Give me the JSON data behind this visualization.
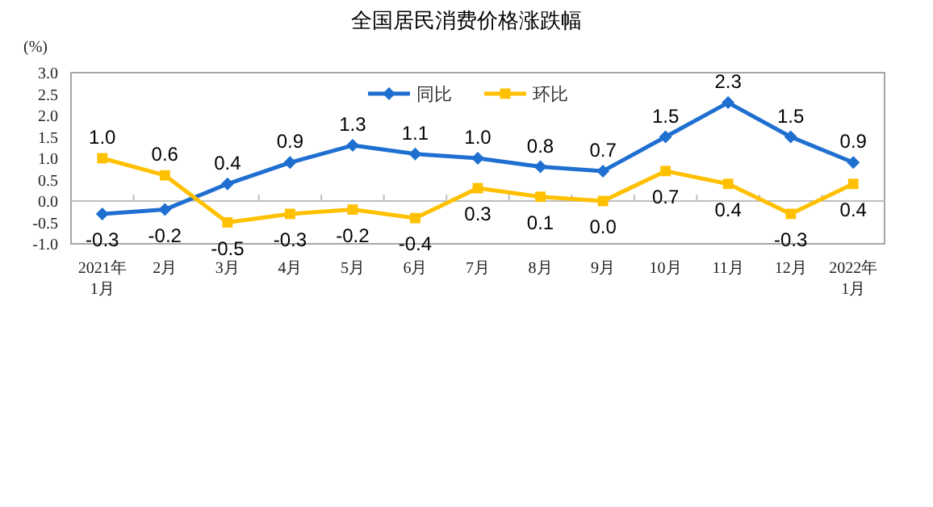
{
  "chart_data": {
    "type": "line",
    "title": "全国居民消费价格涨跌幅",
    "ylabel": "(%)",
    "categories": [
      "2021年\n1月",
      "2月",
      "3月",
      "4月",
      "5月",
      "6月",
      "7月",
      "8月",
      "9月",
      "10月",
      "11月",
      "12月",
      "2022年\n1月"
    ],
    "series": [
      {
        "name": "同比",
        "color": "#1f6fd1",
        "marker": "diamond",
        "values": [
          -0.3,
          -0.2,
          0.4,
          0.9,
          1.3,
          1.1,
          1.0,
          0.8,
          0.7,
          1.5,
          2.3,
          1.5,
          0.9
        ],
        "value_labels": [
          "-0.3",
          "-0.2",
          "0.4",
          "0.9",
          "1.3",
          "1.1",
          "1.0",
          "0.8",
          "0.7",
          "1.5",
          "2.3",
          "1.5",
          "0.9"
        ]
      },
      {
        "name": "环比",
        "color": "#ffc000",
        "marker": "square",
        "values": [
          1.0,
          0.6,
          -0.5,
          -0.3,
          -0.2,
          -0.4,
          0.3,
          0.1,
          0.0,
          0.7,
          0.4,
          -0.3,
          0.4
        ],
        "value_labels": [
          "1.0",
          "0.6",
          "-0.5",
          "-0.3",
          "-0.2",
          "-0.4",
          "0.3",
          "0.1",
          "0.0",
          "0.7",
          "0.4",
          "-0.3",
          "0.4"
        ]
      }
    ],
    "ylim": [
      -1.0,
      3.0
    ],
    "yticks": [
      {
        "value": -1.0,
        "label": "-1.0"
      },
      {
        "value": -0.5,
        "label": "-0.5"
      },
      {
        "value": 0.0,
        "label": "0.0"
      },
      {
        "value": 0.5,
        "label": "0.5"
      },
      {
        "value": 1.0,
        "label": "1.0"
      },
      {
        "value": 1.5,
        "label": "1.5"
      },
      {
        "value": 2.0,
        "label": "2.0"
      },
      {
        "value": 2.5,
        "label": "2.5"
      },
      {
        "value": 3.0,
        "label": "3.0"
      }
    ],
    "legend": "top"
  }
}
